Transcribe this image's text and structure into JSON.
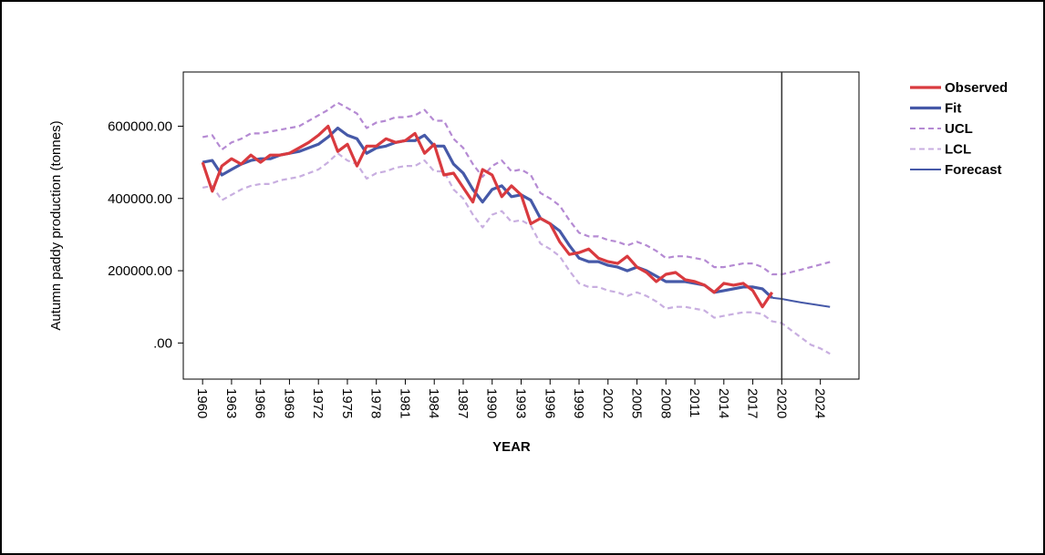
{
  "chart_data": {
    "type": "line",
    "xlabel": "YEAR",
    "ylabel": "Autumn paddy production (tonnes)",
    "ylim": [
      -100000,
      750000
    ],
    "xlim": [
      1958,
      2028
    ],
    "yticks": [
      0,
      200000,
      400000,
      600000
    ],
    "ytick_labels": [
      ".00",
      "200000.00",
      "400000.00",
      "600000.00"
    ],
    "xticks": [
      1960,
      1963,
      1966,
      1969,
      1972,
      1975,
      1978,
      1981,
      1984,
      1987,
      1990,
      1993,
      1996,
      1999,
      2002,
      2005,
      2008,
      2011,
      2014,
      2017,
      2020,
      2024
    ],
    "xtick_labels": [
      "1960",
      "1963",
      "1966",
      "1969",
      "1972",
      "1975",
      "1978",
      "1981",
      "1984",
      "1987",
      "1990",
      "1993",
      "1996",
      "1999",
      "2002",
      "2005",
      "2008",
      "2011",
      "2014",
      "2017",
      "2020",
      "2024"
    ],
    "forecast_start_marker": 2020,
    "legend_position": "right",
    "series": [
      {
        "name": "Observed",
        "color": "#d93a3f",
        "style": "solid",
        "x": [
          1960,
          1961,
          1962,
          1963,
          1964,
          1965,
          1966,
          1967,
          1968,
          1969,
          1970,
          1971,
          1972,
          1973,
          1974,
          1975,
          1976,
          1977,
          1978,
          1979,
          1980,
          1981,
          1982,
          1983,
          1984,
          1985,
          1986,
          1987,
          1988,
          1989,
          1990,
          1991,
          1992,
          1993,
          1994,
          1995,
          1996,
          1997,
          1998,
          1999,
          2000,
          2001,
          2002,
          2003,
          2004,
          2005,
          2006,
          2007,
          2008,
          2009,
          2010,
          2011,
          2012,
          2013,
          2014,
          2015,
          2016,
          2017,
          2018,
          2019
        ],
        "values": [
          500000,
          420000,
          490000,
          510000,
          495000,
          520000,
          500000,
          520000,
          520000,
          525000,
          540000,
          555000,
          575000,
          600000,
          530000,
          550000,
          490000,
          545000,
          545000,
          565000,
          555000,
          560000,
          580000,
          525000,
          550000,
          465000,
          470000,
          430000,
          390000,
          480000,
          465000,
          405000,
          435000,
          410000,
          330000,
          345000,
          330000,
          280000,
          245000,
          250000,
          260000,
          235000,
          225000,
          220000,
          240000,
          210000,
          195000,
          170000,
          190000,
          195000,
          175000,
          170000,
          160000,
          140000,
          165000,
          160000,
          165000,
          145000,
          100000,
          140000
        ]
      },
      {
        "name": "Fit",
        "color": "#4659a8",
        "style": "solid",
        "x": [
          1960,
          1961,
          1962,
          1963,
          1964,
          1965,
          1966,
          1967,
          1968,
          1969,
          1970,
          1971,
          1972,
          1973,
          1974,
          1975,
          1976,
          1977,
          1978,
          1979,
          1980,
          1981,
          1982,
          1983,
          1984,
          1985,
          1986,
          1987,
          1988,
          1989,
          1990,
          1991,
          1992,
          1993,
          1994,
          1995,
          1996,
          1997,
          1998,
          1999,
          2000,
          2001,
          2002,
          2003,
          2004,
          2005,
          2006,
          2007,
          2008,
          2009,
          2010,
          2011,
          2012,
          2013,
          2014,
          2015,
          2016,
          2017,
          2018,
          2019
        ],
        "values": [
          500000,
          505000,
          465000,
          480000,
          495000,
          505000,
          510000,
          510000,
          520000,
          525000,
          530000,
          540000,
          550000,
          570000,
          595000,
          575000,
          565000,
          525000,
          540000,
          545000,
          555000,
          560000,
          560000,
          575000,
          545000,
          545000,
          495000,
          470000,
          425000,
          390000,
          425000,
          435000,
          405000,
          410000,
          395000,
          345000,
          330000,
          310000,
          270000,
          235000,
          225000,
          225000,
          215000,
          210000,
          200000,
          210000,
          200000,
          185000,
          170000,
          170000,
          170000,
          165000,
          160000,
          140000,
          145000,
          150000,
          155000,
          155000,
          150000,
          125000
        ]
      },
      {
        "name": "UCL",
        "color": "#b58ad3",
        "style": "dashed",
        "x": [
          1960,
          1961,
          1962,
          1963,
          1964,
          1965,
          1966,
          1967,
          1968,
          1969,
          1970,
          1971,
          1972,
          1973,
          1974,
          1975,
          1976,
          1977,
          1978,
          1979,
          1980,
          1981,
          1982,
          1983,
          1984,
          1985,
          1986,
          1987,
          1988,
          1989,
          1990,
          1991,
          1992,
          1993,
          1994,
          1995,
          1996,
          1997,
          1998,
          1999,
          2000,
          2001,
          2002,
          2003,
          2004,
          2005,
          2006,
          2007,
          2008,
          2009,
          2010,
          2011,
          2012,
          2013,
          2014,
          2015,
          2016,
          2017,
          2018,
          2019,
          2020,
          2021,
          2022,
          2023,
          2024,
          2025
        ],
        "values": [
          570000,
          575000,
          535000,
          555000,
          565000,
          580000,
          580000,
          585000,
          590000,
          595000,
          600000,
          615000,
          630000,
          645000,
          665000,
          650000,
          635000,
          595000,
          610000,
          615000,
          625000,
          625000,
          630000,
          645000,
          615000,
          615000,
          565000,
          540000,
          495000,
          460000,
          490000,
          505000,
          475000,
          480000,
          465000,
          415000,
          400000,
          380000,
          340000,
          305000,
          295000,
          295000,
          285000,
          280000,
          270000,
          280000,
          270000,
          255000,
          235000,
          240000,
          240000,
          235000,
          230000,
          210000,
          210000,
          215000,
          220000,
          220000,
          210000,
          190000,
          190000,
          196000,
          203000,
          210000,
          217000,
          224000
        ]
      },
      {
        "name": "LCL",
        "color": "#c8aee0",
        "style": "dashed",
        "x": [
          1960,
          1961,
          1962,
          1963,
          1964,
          1965,
          1966,
          1967,
          1968,
          1969,
          1970,
          1971,
          1972,
          1973,
          1974,
          1975,
          1976,
          1977,
          1978,
          1979,
          1980,
          1981,
          1982,
          1983,
          1984,
          1985,
          1986,
          1987,
          1988,
          1989,
          1990,
          1991,
          1992,
          1993,
          1994,
          1995,
          1996,
          1997,
          1998,
          1999,
          2000,
          2001,
          2002,
          2003,
          2004,
          2005,
          2006,
          2007,
          2008,
          2009,
          2010,
          2011,
          2012,
          2013,
          2014,
          2015,
          2016,
          2017,
          2018,
          2019,
          2020,
          2021,
          2022,
          2023,
          2024,
          2025
        ],
        "values": [
          430000,
          435000,
          395000,
          410000,
          425000,
          435000,
          440000,
          440000,
          450000,
          455000,
          460000,
          470000,
          480000,
          500000,
          525000,
          505000,
          495000,
          455000,
          470000,
          475000,
          485000,
          490000,
          490000,
          505000,
          475000,
          475000,
          425000,
          400000,
          355000,
          320000,
          355000,
          365000,
          335000,
          340000,
          325000,
          275000,
          260000,
          240000,
          200000,
          165000,
          155000,
          155000,
          145000,
          140000,
          130000,
          140000,
          130000,
          115000,
          95000,
          100000,
          100000,
          95000,
          90000,
          70000,
          75000,
          80000,
          85000,
          85000,
          80000,
          60000,
          55000,
          35000,
          15000,
          -5000,
          -15000,
          -30000
        ]
      },
      {
        "name": "Forecast",
        "color": "#4659a8",
        "style": "solid-thin",
        "x": [
          2019,
          2020,
          2021,
          2022,
          2023,
          2024,
          2025
        ],
        "values": [
          125000,
          122000,
          117000,
          112000,
          108000,
          104000,
          100000
        ]
      }
    ]
  }
}
